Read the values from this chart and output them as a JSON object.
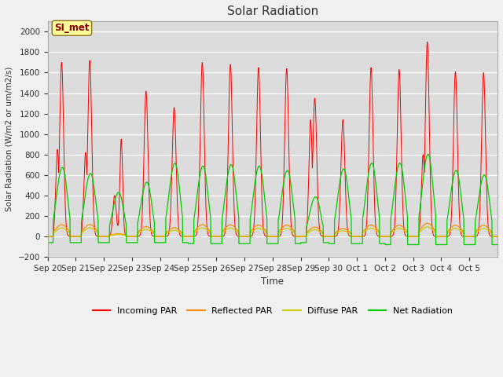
{
  "title": "Solar Radiation",
  "ylabel": "Solar Radiation (W/m2 or um/m2/s)",
  "xlabel": "Time",
  "ylim": [
    -200,
    2100
  ],
  "yticks": [
    -200,
    0,
    200,
    400,
    600,
    800,
    1000,
    1200,
    1400,
    1600,
    1800,
    2000
  ],
  "annotation": "SI_met",
  "annotation_color": "#8B0000",
  "annotation_bg": "#FFFF99",
  "fig_bg": "#F0F0F0",
  "plot_bg": "#DCDCDC",
  "grid_color": "#FFFFFF",
  "colors": {
    "incoming": "#FF0000",
    "reflected": "#FF8C00",
    "diffuse": "#CCCC00",
    "net": "#00CC00"
  },
  "legend_labels": [
    "Incoming PAR",
    "Reflected PAR",
    "Diffuse PAR",
    "Net Radiation"
  ],
  "x_tick_labels": [
    "Sep 20",
    "Sep 21",
    "Sep 22",
    "Sep 23",
    "Sep 24",
    "Sep 25",
    "Sep 26",
    "Sep 27",
    "Sep 28",
    "Sep 29",
    "Sep 30",
    "Oct 1",
    "Oct 2",
    "Oct 3",
    "Oct 4",
    "Oct 5"
  ],
  "num_days": 16,
  "n_points": 3200,
  "day_peaks_incoming": [
    1700,
    1720,
    400,
    1420,
    1260,
    1700,
    1680,
    1650,
    1640,
    1350,
    1140,
    1650,
    1630,
    1900,
    1610,
    1600
  ],
  "day_peaks_net": [
    470,
    430,
    300,
    370,
    500,
    480,
    490,
    480,
    450,
    270,
    460,
    500,
    500,
    560,
    450,
    420
  ],
  "day_peaks_incoming2": [
    850,
    820,
    950,
    0,
    0,
    0,
    0,
    0,
    0,
    1140,
    0,
    0,
    0,
    800,
    0,
    0
  ],
  "night_neg": [
    -60,
    -60,
    -60,
    -60,
    -60,
    -70,
    -70,
    -70,
    -70,
    -60,
    -70,
    -70,
    -80,
    -80,
    -80,
    -80
  ]
}
